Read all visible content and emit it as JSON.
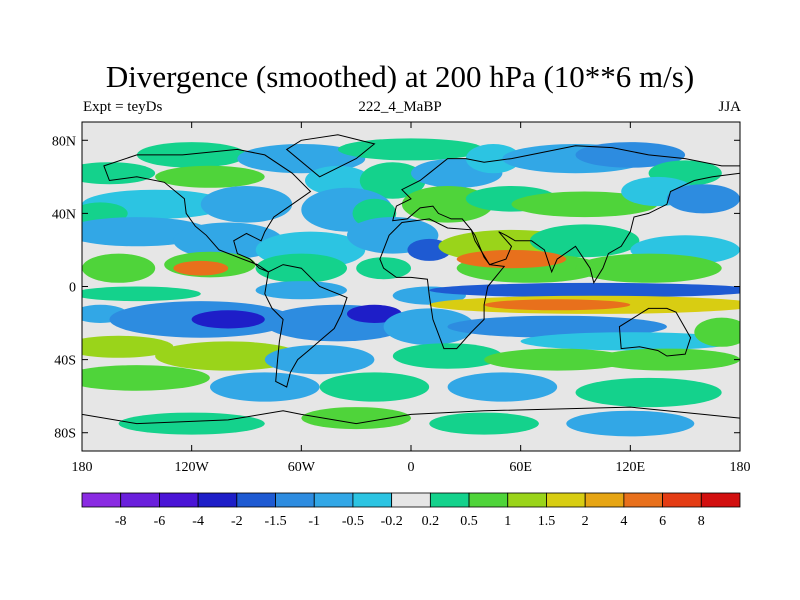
{
  "chart_data": {
    "type": "heatmap",
    "title": "Divergence (smoothed) at 200 hPa (10**6 m/s)",
    "subtitle_left": "Expt = teyDs",
    "subtitle_center": "222_4_MaBP",
    "subtitle_right": "JJA",
    "x_range": [
      -180,
      180
    ],
    "y_range": [
      -90,
      90
    ],
    "x_ticks": [
      {
        "value": -180,
        "label": "180"
      },
      {
        "value": -120,
        "label": "120W"
      },
      {
        "value": -60,
        "label": "60W"
      },
      {
        "value": 0,
        "label": "0"
      },
      {
        "value": 60,
        "label": "60E"
      },
      {
        "value": 120,
        "label": "120E"
      },
      {
        "value": 180,
        "label": "180"
      }
    ],
    "y_ticks": [
      {
        "value": 80,
        "label": "80N"
      },
      {
        "value": 40,
        "label": "40N"
      },
      {
        "value": 0,
        "label": "0"
      },
      {
        "value": -40,
        "label": "40S"
      },
      {
        "value": -80,
        "label": "80S"
      }
    ],
    "colorbar_labels": [
      "-8",
      "-6",
      "-4",
      "-2",
      "-1.5",
      "-1",
      "-0.5",
      "-0.2",
      "0.2",
      "0.5",
      "1",
      "1.5",
      "2",
      "4",
      "6",
      "8"
    ],
    "colorbar_colors": [
      "#8a2be2",
      "#6a1fdc",
      "#4a14d6",
      "#1e1ec8",
      "#1e5ad2",
      "#2d8ce0",
      "#32a7e6",
      "#2cc4e2",
      "#e6e6e6",
      "#14d28c",
      "#4fd43a",
      "#9ad41a",
      "#d8cd12",
      "#e6a514",
      "#e8701c",
      "#e43c14",
      "#d20f0f"
    ]
  }
}
